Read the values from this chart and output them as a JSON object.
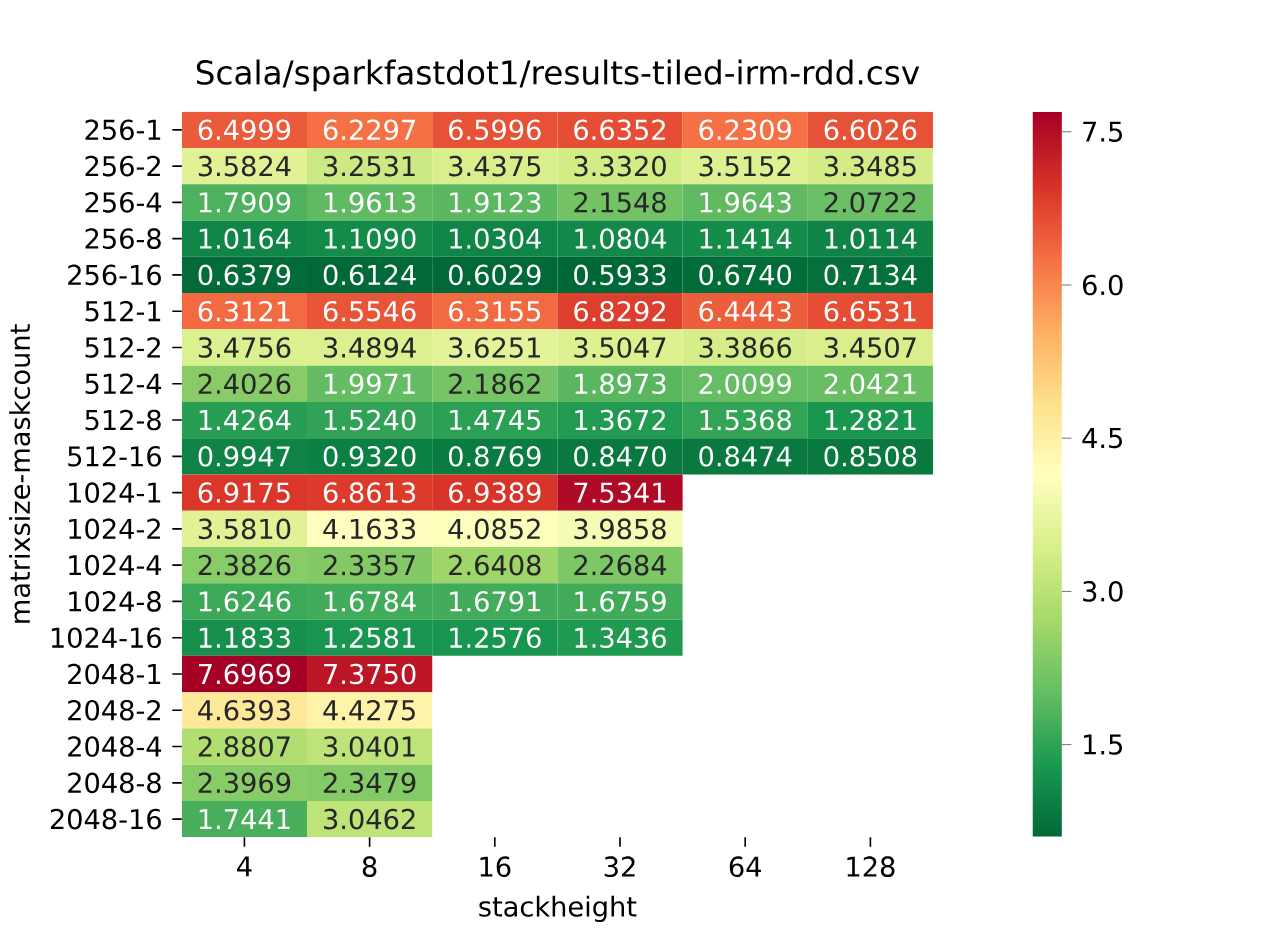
{
  "chart_data": {
    "type": "heatmap",
    "title": "Scala/sparkfastdot1/results-tiled-irm-rdd.csv",
    "xlabel": "stackheight",
    "ylabel": "matrixsize-maskcount",
    "categories": [
      "4",
      "8",
      "16",
      "32",
      "64",
      "128"
    ],
    "y_categories": [
      "256-1",
      "256-2",
      "256-4",
      "256-8",
      "256-16",
      "512-1",
      "512-2",
      "512-4",
      "512-8",
      "512-16",
      "1024-1",
      "1024-2",
      "1024-4",
      "1024-8",
      "1024-16",
      "2048-1",
      "2048-2",
      "2048-4",
      "2048-8",
      "2048-16"
    ],
    "cells": [
      [
        6.4999,
        6.2297,
        6.5996,
        6.6352,
        6.2309,
        6.6026
      ],
      [
        3.5824,
        3.2531,
        3.4375,
        3.332,
        3.5152,
        3.3485
      ],
      [
        1.7909,
        1.9613,
        1.9123,
        2.1548,
        1.9643,
        2.0722
      ],
      [
        1.0164,
        1.109,
        1.0304,
        1.0804,
        1.1414,
        1.0114
      ],
      [
        0.6379,
        0.6124,
        0.6029,
        0.5933,
        0.674,
        0.7134
      ],
      [
        6.3121,
        6.5546,
        6.3155,
        6.8292,
        6.4443,
        6.6531
      ],
      [
        3.4756,
        3.4894,
        3.6251,
        3.5047,
        3.3866,
        3.4507
      ],
      [
        2.4026,
        1.9971,
        2.1862,
        1.8973,
        2.0099,
        2.0421
      ],
      [
        1.4264,
        1.524,
        1.4745,
        1.3672,
        1.5368,
        1.2821
      ],
      [
        0.9947,
        0.932,
        0.8769,
        0.847,
        0.8474,
        0.8508
      ],
      [
        6.9175,
        6.8613,
        6.9389,
        7.5341,
        null,
        null
      ],
      [
        3.581,
        4.1633,
        4.0852,
        3.9858,
        null,
        null
      ],
      [
        2.3826,
        2.3357,
        2.6408,
        2.2684,
        null,
        null
      ],
      [
        1.6246,
        1.6784,
        1.6791,
        1.6759,
        null,
        null
      ],
      [
        1.1833,
        1.2581,
        1.2576,
        1.3436,
        null,
        null
      ],
      [
        7.6969,
        7.375,
        null,
        null,
        null,
        null
      ],
      [
        4.6393,
        4.4275,
        null,
        null,
        null,
        null
      ],
      [
        2.8807,
        3.0401,
        null,
        null,
        null,
        null
      ],
      [
        2.3969,
        2.3479,
        null,
        null,
        null,
        null
      ],
      [
        1.7441,
        3.0462,
        null,
        null,
        null,
        null
      ]
    ],
    "cell_labels": [
      [
        "6.4999",
        "6.2297",
        "6.5996",
        "6.6352",
        "6.2309",
        "6.6026"
      ],
      [
        "3.5824",
        "3.2531",
        "3.4375",
        "3.3320",
        "3.5152",
        "3.3485"
      ],
      [
        "1.7909",
        "1.9613",
        "1.9123",
        "2.1548",
        "1.9643",
        "2.0722"
      ],
      [
        "1.0164",
        "1.1090",
        "1.0304",
        "1.0804",
        "1.1414",
        "1.0114"
      ],
      [
        "0.6379",
        "0.6124",
        "0.6029",
        "0.5933",
        "0.6740",
        "0.7134"
      ],
      [
        "6.3121",
        "6.5546",
        "6.3155",
        "6.8292",
        "6.4443",
        "6.6531"
      ],
      [
        "3.4756",
        "3.4894",
        "3.6251",
        "3.5047",
        "3.3866",
        "3.4507"
      ],
      [
        "2.4026",
        "1.9971",
        "2.1862",
        "1.8973",
        "2.0099",
        "2.0421"
      ],
      [
        "1.4264",
        "1.5240",
        "1.4745",
        "1.3672",
        "1.5368",
        "1.2821"
      ],
      [
        "0.9947",
        "0.9320",
        "0.8769",
        "0.8470",
        "0.8474",
        "0.8508"
      ],
      [
        "6.9175",
        "6.8613",
        "6.9389",
        "7.5341",
        null,
        null
      ],
      [
        "3.5810",
        "4.1633",
        "4.0852",
        "3.9858",
        null,
        null
      ],
      [
        "2.3826",
        "2.3357",
        "2.6408",
        "2.2684",
        null,
        null
      ],
      [
        "1.6246",
        "1.6784",
        "1.6791",
        "1.6759",
        null,
        null
      ],
      [
        "1.1833",
        "1.2581",
        "1.2576",
        "1.3436",
        null,
        null
      ],
      [
        "7.6969",
        "7.3750",
        null,
        null,
        null,
        null
      ],
      [
        "4.6393",
        "4.4275",
        null,
        null,
        null,
        null
      ],
      [
        "2.8807",
        "3.0401",
        null,
        null,
        null,
        null
      ],
      [
        "2.3969",
        "2.3479",
        null,
        null,
        null,
        null
      ],
      [
        "1.7441",
        "3.0462",
        null,
        null,
        null,
        null
      ]
    ],
    "clim": [
      0.5933,
      7.6969
    ],
    "cticks": [
      {
        "value": 1.5,
        "label": "1.5"
      },
      {
        "value": 3.0,
        "label": "3.0"
      },
      {
        "value": 4.5,
        "label": "4.5"
      },
      {
        "value": 6.0,
        "label": "6.0"
      },
      {
        "value": 7.5,
        "label": "7.5"
      }
    ]
  }
}
